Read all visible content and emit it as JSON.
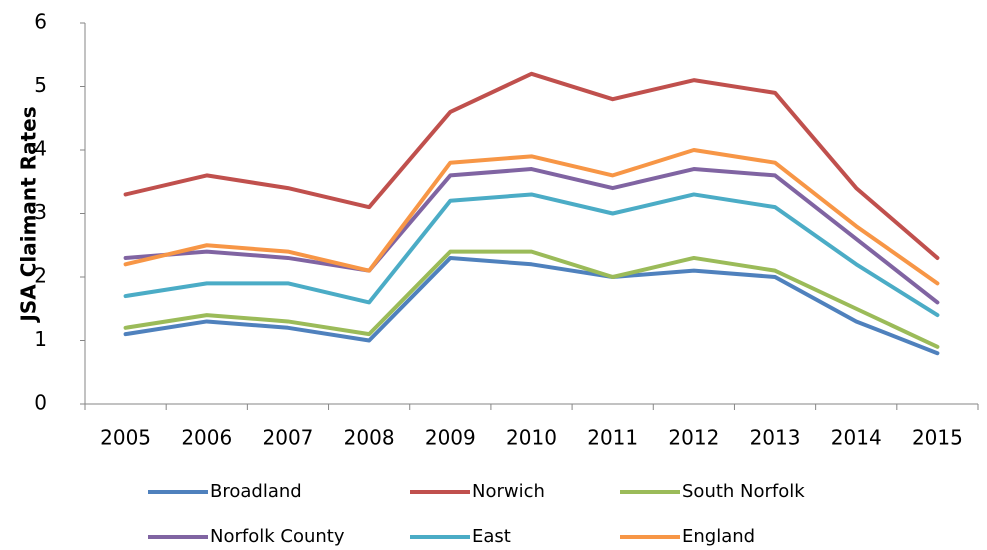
{
  "chart_data": {
    "type": "line",
    "y_label": "JSA Claimant Rates",
    "categories": [
      "2005",
      "2006",
      "2007",
      "2008",
      "2009",
      "2010",
      "2011",
      "2012",
      "2013",
      "2014",
      "2015"
    ],
    "series": [
      {
        "name": "Broadland",
        "color": "#4f81bd",
        "values": [
          1.1,
          1.3,
          1.2,
          1.0,
          2.3,
          2.2,
          2.0,
          2.1,
          2.0,
          1.3,
          0.8
        ]
      },
      {
        "name": "Norwich",
        "color": "#c0504d",
        "values": [
          3.3,
          3.6,
          3.4,
          3.1,
          4.6,
          5.2,
          4.8,
          5.1,
          4.9,
          3.4,
          2.3
        ]
      },
      {
        "name": "South Norfolk",
        "color": "#9bbb59",
        "values": [
          1.2,
          1.4,
          1.3,
          1.1,
          2.4,
          2.4,
          2.0,
          2.3,
          2.1,
          1.5,
          0.9
        ]
      },
      {
        "name": "Norfolk County",
        "color": "#8064a2",
        "values": [
          2.3,
          2.4,
          2.3,
          2.1,
          3.6,
          3.7,
          3.4,
          3.7,
          3.6,
          2.6,
          1.6
        ]
      },
      {
        "name": "East",
        "color": "#4bacc6",
        "values": [
          1.7,
          1.9,
          1.9,
          1.6,
          3.2,
          3.3,
          3.0,
          3.3,
          3.1,
          2.2,
          1.4
        ]
      },
      {
        "name": "England",
        "color": "#f79646",
        "values": [
          2.2,
          2.5,
          2.4,
          2.1,
          3.8,
          3.9,
          3.6,
          4.0,
          3.8,
          2.8,
          1.9
        ]
      }
    ],
    "ylim": [
      0,
      6
    ],
    "yticks": [
      0,
      1,
      2,
      3,
      4,
      5,
      6
    ],
    "grid": false
  }
}
